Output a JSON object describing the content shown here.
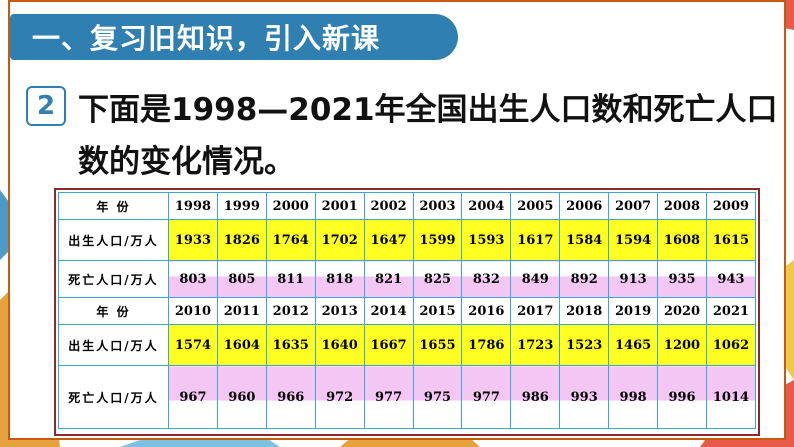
{
  "section": {
    "title": "一、复习旧知识，引入新课"
  },
  "question": {
    "number": "2",
    "text": "下面是1998—2021年全国出生人口数和死亡人口数的变化情况。"
  },
  "table": {
    "blocks": [
      {
        "year_label": "年 份",
        "years": [
          "1998",
          "1999",
          "2000",
          "2001",
          "2002",
          "2003",
          "2004",
          "2005",
          "2006",
          "2007",
          "2008",
          "2009"
        ],
        "birth_label": "出生人口/万人",
        "births": [
          "1933",
          "1826",
          "1764",
          "1702",
          "1647",
          "1599",
          "1593",
          "1617",
          "1584",
          "1594",
          "1608",
          "1615"
        ],
        "death_label": "死亡人口/万人",
        "deaths": [
          "803",
          "805",
          "811",
          "818",
          "821",
          "825",
          "832",
          "849",
          "892",
          "913",
          "935",
          "943"
        ]
      },
      {
        "year_label": "年 份",
        "years": [
          "2010",
          "2011",
          "2012",
          "2013",
          "2014",
          "2015",
          "2016",
          "2017",
          "2018",
          "2019",
          "2020",
          "2021"
        ],
        "birth_label": "出生人口/万人",
        "births": [
          "1574",
          "1604",
          "1635",
          "1640",
          "1667",
          "1655",
          "1786",
          "1723",
          "1523",
          "1465",
          "1200",
          "1062"
        ],
        "death_label": "死亡人口/万人",
        "deaths": [
          "967",
          "960",
          "966",
          "972",
          "977",
          "975",
          "977",
          "986",
          "993",
          "998",
          "996",
          "1014"
        ]
      }
    ]
  },
  "colors": {
    "banner": "#2f7fb1",
    "birth_row": "#ffff22",
    "death_row": "#f3c6f3",
    "grid": "#3aa6d4"
  }
}
